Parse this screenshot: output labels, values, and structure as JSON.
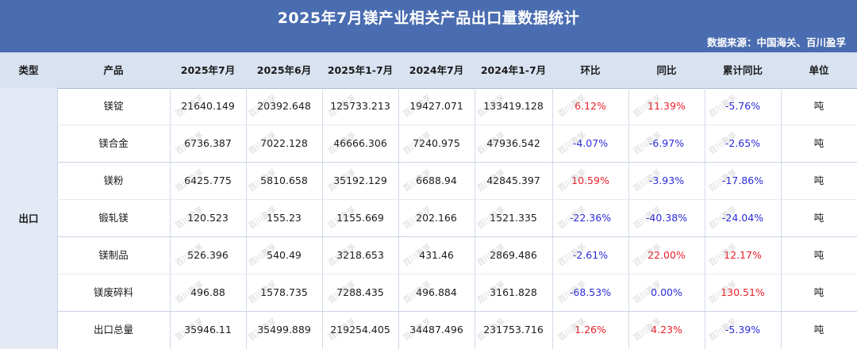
{
  "title": "2025年7月镁产业相关产品出口量数据统计",
  "source": "数据来源：中国海关、百川盈孚",
  "headers": [
    "类型",
    "产品",
    "2025年7月",
    "2025年6月",
    "2025年1-7月",
    "2024年7月",
    "2024年1-7月",
    "环比",
    "同比",
    "累计同比",
    "单位"
  ],
  "type_label": "出口",
  "watermark": "百川盈孚",
  "rows": [
    {
      "product": "镁锭",
      "m2507": "21640.149",
      "m2506": "20392.648",
      "ytd25": "125733.213",
      "m2407": "19427.071",
      "ytd24": "133419.128",
      "mom": "6.12%",
      "yoy": "11.39%",
      "cum": "-5.76%",
      "unit": "吨"
    },
    {
      "product": "镁合金",
      "m2507": "6736.387",
      "m2506": "7022.128",
      "ytd25": "46666.306",
      "m2407": "7240.975",
      "ytd24": "47936.542",
      "mom": "-4.07%",
      "yoy": "-6.97%",
      "cum": "-2.65%",
      "unit": "吨"
    },
    {
      "product": "镁粉",
      "m2507": "6425.775",
      "m2506": "5810.658",
      "ytd25": "35192.129",
      "m2407": "6688.94",
      "ytd24": "42845.397",
      "mom": "10.59%",
      "yoy": "-3.93%",
      "cum": "-17.86%",
      "unit": "吨"
    },
    {
      "product": "锻轧镁",
      "m2507": "120.523",
      "m2506": "155.23",
      "ytd25": "1155.669",
      "m2407": "202.166",
      "ytd24": "1521.335",
      "mom": "-22.36%",
      "yoy": "-40.38%",
      "cum": "-24.04%",
      "unit": "吨"
    },
    {
      "product": "镁制品",
      "m2507": "526.396",
      "m2506": "540.49",
      "ytd25": "3218.653",
      "m2407": "431.46",
      "ytd24": "2869.486",
      "mom": "-2.61%",
      "yoy": "22.00%",
      "cum": "12.17%",
      "unit": "吨"
    },
    {
      "product": "镁废碎料",
      "m2507": "496.88",
      "m2506": "1578.735",
      "ytd25": "7288.435",
      "m2407": "496.884",
      "ytd24": "3161.828",
      "mom": "-68.53%",
      "yoy": "0.00%",
      "cum": "130.51%",
      "unit": "吨"
    },
    {
      "product": "出口总量",
      "m2507": "35946.11",
      "m2506": "35499.889",
      "ytd25": "219254.405",
      "m2407": "34487.496",
      "ytd24": "231753.716",
      "mom": "1.26%",
      "yoy": "4.23%",
      "cum": "-5.39%",
      "unit": "吨"
    }
  ]
}
